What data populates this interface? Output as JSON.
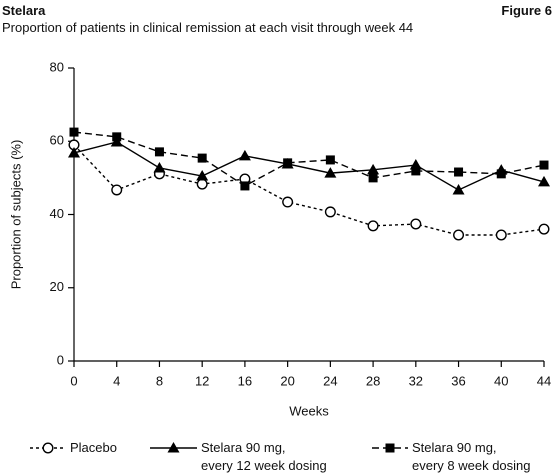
{
  "chart_data": {
    "type": "line",
    "title": "Stelara",
    "figure_label": "Figure 6",
    "subtitle": "Proportion of patients in clinical remission at each visit through week 44",
    "x_label": "Weeks",
    "y_label": "Proportion of subjects (%)",
    "x": [
      0,
      4,
      8,
      12,
      16,
      20,
      24,
      28,
      32,
      36,
      40,
      44
    ],
    "xlim": [
      0,
      44
    ],
    "xticks": [
      0,
      4,
      8,
      12,
      16,
      20,
      24,
      28,
      32,
      36,
      40,
      44
    ],
    "ylim": [
      0,
      80
    ],
    "yticks": [
      0,
      20,
      40,
      60,
      80
    ],
    "grid": false,
    "legend": "bottom",
    "series": [
      {
        "name": "Placebo",
        "color": "#000000",
        "dash": "dotted",
        "marker": "circle",
        "values": [
          59.0,
          46.7,
          51.1,
          48.3,
          49.7,
          43.4,
          40.7,
          36.9,
          37.4,
          34.4,
          34.4,
          36.0
        ]
      },
      {
        "name": "Stelara 90 mg,\nevery 12 week dosing",
        "color": "#000000",
        "dash": "solid",
        "marker": "triangle",
        "values": [
          56.8,
          59.8,
          52.7,
          50.5,
          56.0,
          53.8,
          51.3,
          52.2,
          53.5,
          46.7,
          52.1,
          48.9
        ]
      },
      {
        "name": "Stelara 90 mg,\nevery 8 week dosing",
        "color": "#000000",
        "dash": "dashed",
        "marker": "square",
        "values": [
          62.5,
          61.2,
          57.1,
          55.4,
          47.8,
          54.1,
          54.9,
          50.0,
          51.9,
          51.6,
          51.1,
          53.5
        ]
      }
    ]
  }
}
